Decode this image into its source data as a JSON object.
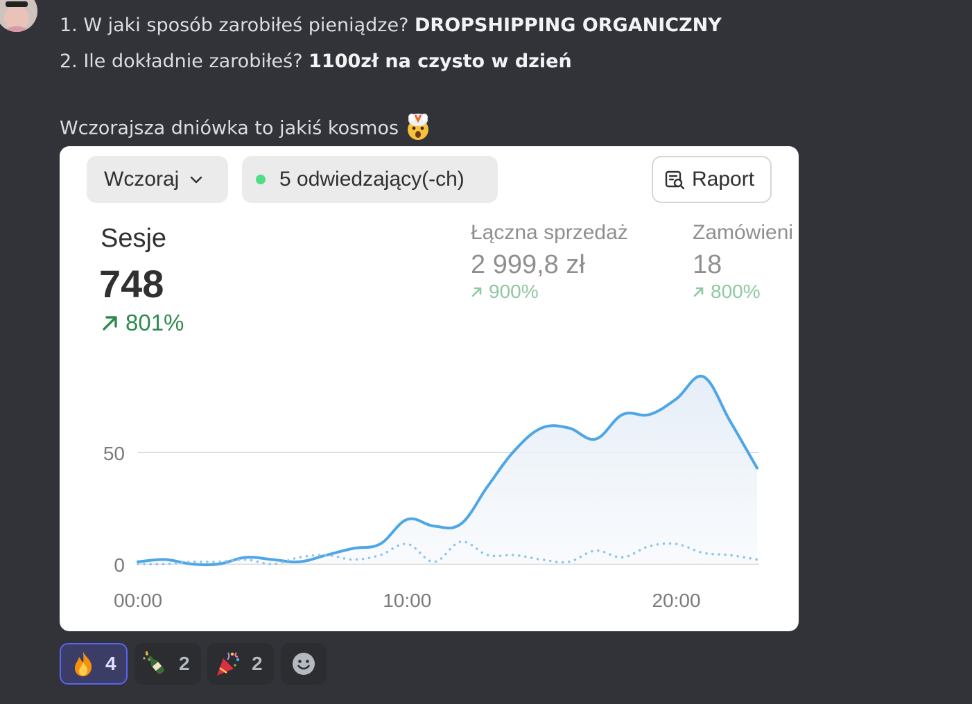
{
  "message": {
    "line1_prefix": "1. W jaki sposób zarobiłeś pieniądze?",
    "line1_bold": "DROPSHIPPING ORGANICZNY",
    "line2_prefix": "2. Ile dokładnie zarobiłeś?",
    "line2_bold": "1100zł na czysto w dzień",
    "line3": "Wczorajsza dniówka to jakiś kosmos",
    "line3_emoji": "exploding-head-emoji"
  },
  "dashboard": {
    "period_label": "Wczoraj",
    "visitors_label": "5 odwiedzający(-ch)",
    "report_label": "Raport",
    "sessions": {
      "label": "Sesje",
      "value": "748",
      "change": "801%"
    },
    "sales": {
      "label": "Łączna sprzedaż",
      "value": "2 999,8 zł",
      "change": "900%"
    },
    "orders": {
      "label": "Zamówieni",
      "value": "18",
      "change": "800%"
    },
    "colors": {
      "primary_line": "#4ea6e6",
      "comparison_line": "#8ec4ea",
      "positive": "#2f8a4f",
      "accent": "#5865f2"
    }
  },
  "chart_data": {
    "type": "line",
    "xlabel": "",
    "ylabel": "",
    "x_ticks": [
      "00:00",
      "10:00",
      "20:00"
    ],
    "y_ticks": [
      "0",
      "50"
    ],
    "ylim": [
      0,
      100
    ],
    "xlim": [
      0,
      23
    ],
    "grid": true,
    "series": [
      {
        "style": "solid",
        "x": [
          0,
          1,
          2,
          3,
          4,
          5,
          6,
          7,
          8,
          9,
          10,
          11,
          12,
          13,
          14,
          15,
          16,
          17,
          18,
          19,
          20,
          21,
          22,
          23
        ],
        "values": [
          1,
          2,
          0,
          0,
          3,
          2,
          1,
          4,
          7,
          9,
          20,
          17,
          18,
          35,
          51,
          61,
          61,
          56,
          67,
          67,
          74,
          84,
          64,
          43
        ]
      },
      {
        "style": "dotted",
        "x": [
          0,
          1,
          2,
          3,
          4,
          5,
          6,
          7,
          8,
          9,
          10,
          11,
          12,
          13,
          14,
          15,
          16,
          17,
          18,
          19,
          20,
          21,
          22,
          23
        ],
        "values": [
          0,
          0,
          1,
          1,
          2,
          0,
          3,
          4,
          2,
          4,
          9,
          1,
          10,
          4,
          4,
          2,
          1,
          6,
          3,
          8,
          9,
          5,
          4,
          2
        ]
      }
    ]
  },
  "reactions": [
    {
      "emoji": "fire-emoji",
      "count": "4",
      "active": true
    },
    {
      "emoji": "champagne-emoji",
      "count": "2",
      "active": false
    },
    {
      "emoji": "party-popper-emoji",
      "count": "2",
      "active": false
    }
  ]
}
